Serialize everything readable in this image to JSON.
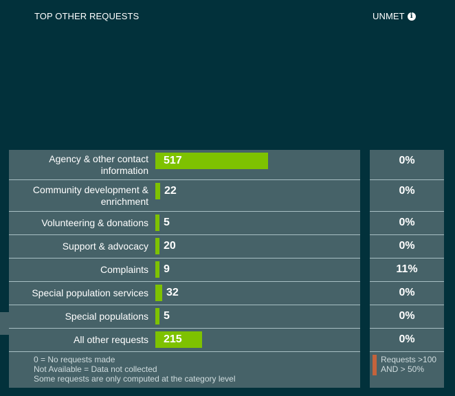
{
  "header": {
    "title": "TOP OTHER REQUESTS",
    "unmet_label": "UNMET"
  },
  "chart_data": {
    "type": "bar",
    "categories": [
      "Agency & other contact information",
      "Community development & enrichment",
      "Volunteering & donations",
      "Support & advocacy",
      "Complaints",
      "Special population services",
      "Special populations",
      "All other requests"
    ],
    "values": [
      517,
      22,
      5,
      20,
      9,
      32,
      5,
      215
    ],
    "unmet": [
      "0%",
      "0%",
      "0%",
      "0%",
      "11%",
      "0%",
      "0%",
      "0%"
    ],
    "bar_color": "#7ec200"
  },
  "rows": [
    {
      "label": "Agency & other contact information",
      "value": "517",
      "unmet": "0%"
    },
    {
      "label": "Community development & enrichment",
      "value": "22",
      "unmet": "0%"
    },
    {
      "label": "Volunteering & donations",
      "value": "5",
      "unmet": "0%"
    },
    {
      "label": "Support & advocacy",
      "value": "20",
      "unmet": "0%"
    },
    {
      "label": "Complaints",
      "value": "9",
      "unmet": "11%"
    },
    {
      "label": "Special population services",
      "value": "32",
      "unmet": "0%"
    },
    {
      "label": "Special populations",
      "value": "5",
      "unmet": "0%"
    },
    {
      "label": "All other requests",
      "value": "215",
      "unmet": "0%"
    }
  ],
  "footnotes": {
    "line1": "0 = No requests made",
    "line2": "Not Available = Data not collected",
    "line3": "Some requests are only computed at the category level"
  },
  "legend": {
    "text1": "Requests >100",
    "text2": "AND > 50%",
    "color": "#c4633c"
  }
}
